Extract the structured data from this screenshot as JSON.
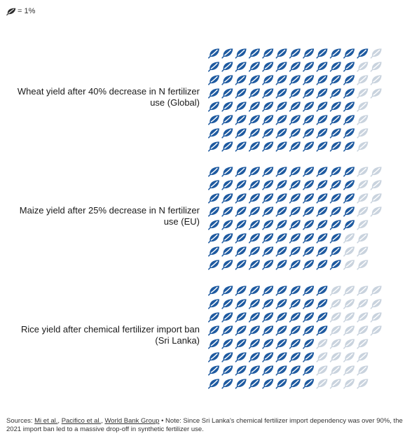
{
  "legend": {
    "icon": "leaf-icon",
    "text": "= 1%",
    "icon_color": "#2b2b2b"
  },
  "colors": {
    "remaining": "#1e5aa0",
    "lost": "#c9d3de"
  },
  "chart_data": [
    {
      "type": "icon-array",
      "label_line1": "Wheat yield after 40% decrease in N fertilizer",
      "label_line2": "use (Global)",
      "remaining_percent": 89,
      "lost_percent": 11,
      "total_icons": 100
    },
    {
      "type": "icon-array",
      "label_line1": "Maize yield after 25% decrease in N fertilizer",
      "label_line2": "use (EU)",
      "remaining_percent": 85,
      "lost_percent": 15,
      "total_icons": 100
    },
    {
      "type": "icon-array",
      "label_line1": "Rice yield after chemical fertilizer import ban",
      "label_line2": "(Sri Lanka)",
      "remaining_percent": 68,
      "lost_percent": 32,
      "total_icons": 100
    }
  ],
  "footer": {
    "sources_label": "Sources: ",
    "link1": "Mi et al.",
    "sep1": ", ",
    "link2": "Pacifico et al.",
    "sep2": ", ",
    "link3": "World Bank Group",
    "note": " • Note: Since Sri Lanka's chemical fertilizer import dependency was over 90%, the 2021 import ban led to a massive drop-off in synthetic fertilizer use."
  }
}
